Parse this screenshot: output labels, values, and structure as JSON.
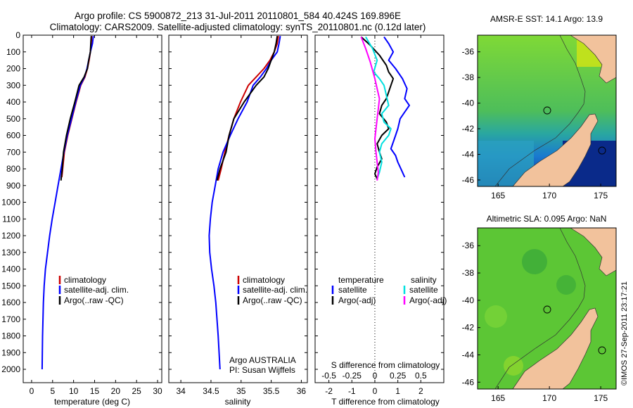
{
  "header": {
    "line1": "Argo profile: CS 5900872_213 31-Jul-2011 20110801_584 40.424S 169.896E",
    "line2": "Climatology: CARS2009. Satellite-adjusted climatology: synTS_20110801.nc (0.12d later)"
  },
  "colors": {
    "climatology": "#cc0000",
    "satellite": "#0000ff",
    "argo": "#000000",
    "argo_salinity": "#ff00ff",
    "satellite_salinity": "#00e0e0",
    "land": "#f2c29c"
  },
  "profile_axes": {
    "pressure_ylim": [
      0,
      2080
    ],
    "pressure_ticks": [
      "0",
      "100",
      "200",
      "300",
      "400",
      "500",
      "600",
      "700",
      "800",
      "900",
      "1000",
      "1100",
      "1200",
      "1300",
      "1400",
      "1500",
      "1600",
      "1700",
      "1800",
      "1900",
      "2000"
    ]
  },
  "chart_data": [
    {
      "type": "line",
      "id": "temperature",
      "xlabel": "temperature (deg C)",
      "xlim": [
        -2,
        31
      ],
      "xticks": [
        "0",
        "5",
        "10",
        "15",
        "20",
        "25",
        "30"
      ],
      "legend": [
        "climatology",
        "satellite-adj. clim.",
        "Argo(..raw -QC)"
      ],
      "series": [
        {
          "name": "climatology",
          "x": [
            14.3,
            14.2,
            14.0,
            13.7,
            13.3,
            12.7,
            11.7,
            10.6,
            9.6,
            8.6,
            7.8,
            7.2
          ],
          "y": [
            5,
            50,
            100,
            150,
            200,
            250,
            300,
            400,
            500,
            600,
            700,
            850
          ]
        },
        {
          "name": "satellite-adj. clim.",
          "x": [
            14.7,
            14.5,
            14.0,
            13.6,
            13.2,
            12.6,
            11.6,
            10.5,
            9.5,
            8.5,
            7.7,
            7.0,
            6.3,
            5.6,
            4.9,
            4.3,
            3.8,
            3.3,
            3.0,
            2.8,
            2.6,
            2.5
          ],
          "y": [
            5,
            50,
            100,
            150,
            200,
            250,
            300,
            400,
            500,
            600,
            700,
            800,
            900,
            1000,
            1100,
            1200,
            1300,
            1400,
            1500,
            1600,
            1800,
            2000
          ]
        },
        {
          "name": "Argo(..raw -QC)",
          "x": [
            14.2,
            14.1,
            14.0,
            13.6,
            13.3,
            12.5,
            11.3,
            10.3,
            9.2,
            8.3,
            7.6,
            7.3,
            7.0
          ],
          "y": [
            5,
            50,
            100,
            150,
            200,
            250,
            300,
            400,
            500,
            600,
            700,
            800,
            870
          ]
        }
      ]
    },
    {
      "type": "line",
      "id": "salinity",
      "xlabel": "salinity",
      "xlim": [
        33.8,
        36.1
      ],
      "xticks": [
        "34",
        "34.5",
        "35",
        "35.5",
        "36"
      ],
      "legend": [
        "climatology",
        "satellite-adj. clim.",
        "Argo(..raw -QC)"
      ],
      "annotation": [
        "Argo AUSTRALIA",
        "PI: Susan Wijffels"
      ],
      "series": [
        {
          "name": "climatology",
          "x": [
            35.62,
            35.6,
            35.55,
            35.48,
            35.38,
            35.25,
            35.12,
            34.99,
            34.88,
            34.8,
            34.73,
            34.67,
            34.62
          ],
          "y": [
            5,
            50,
            100,
            150,
            200,
            250,
            300,
            400,
            500,
            600,
            700,
            800,
            870
          ]
        },
        {
          "name": "satellite-adj. clim.",
          "x": [
            35.65,
            35.63,
            35.6,
            35.5,
            35.42,
            35.32,
            35.2,
            35.1,
            34.95,
            34.82,
            34.7,
            34.62,
            34.57,
            34.52,
            34.49,
            34.47,
            34.48,
            34.51,
            34.55,
            34.58,
            34.62,
            34.65
          ],
          "y": [
            5,
            50,
            100,
            150,
            200,
            250,
            300,
            400,
            500,
            600,
            700,
            800,
            900,
            1000,
            1100,
            1200,
            1300,
            1400,
            1500,
            1600,
            1800,
            2000
          ]
        },
        {
          "name": "Argo(..raw -QC)",
          "x": [
            35.6,
            35.58,
            35.55,
            35.5,
            35.45,
            35.38,
            35.25,
            35.05,
            34.88,
            34.8,
            34.75,
            34.65,
            34.6
          ],
          "y": [
            5,
            50,
            100,
            150,
            200,
            250,
            300,
            400,
            500,
            600,
            700,
            800,
            870
          ]
        }
      ]
    },
    {
      "type": "line",
      "id": "difference",
      "xlabel": "T difference from climatology",
      "xlabel_top": "S difference from climatology",
      "xlim": [
        -2.6,
        3.0
      ],
      "xticks": [
        "-2",
        "-1",
        "0",
        "1",
        "2"
      ],
      "xticks_salinity": [
        "-0.5",
        "-0.25",
        "0",
        "0.25",
        "0.5"
      ],
      "legend_headers": [
        "temperature",
        "salinity"
      ],
      "legend": [
        "satellite",
        "Argo(-adj)",
        "satellite",
        "Argo(-adj)"
      ],
      "series": [
        {
          "name": "satellite",
          "x": [
            0.4,
            0.6,
            0.8,
            0.6,
            0.9,
            1.2,
            1.4,
            1.3,
            1.5,
            1.3,
            1.1,
            1.0,
            0.9,
            0.8,
            0.7,
            0.9,
            1.0,
            1.1,
            1.2,
            1.3
          ],
          "y": [
            10,
            50,
            100,
            150,
            200,
            260,
            320,
            380,
            420,
            460,
            500,
            560,
            600,
            640,
            680,
            720,
            760,
            790,
            820,
            850
          ]
        },
        {
          "name": "Argo(-adj)",
          "x": [
            -0.6,
            -0.2,
            0.2,
            0.5,
            0.6,
            0.8,
            0.7,
            0.5,
            0.3,
            0.2,
            0.5,
            0.6,
            0.3,
            0.1,
            0.2,
            0.3,
            0.1,
            0.0,
            0.1
          ],
          "y": [
            10,
            60,
            120,
            180,
            220,
            260,
            300,
            380,
            420,
            470,
            520,
            560,
            600,
            650,
            700,
            740,
            790,
            830,
            860
          ]
        },
        {
          "name": "satellite",
          "x": [
            -0.4,
            -0.1,
            0.1,
            -0.05,
            0.2,
            0.4,
            0.5,
            0.6,
            0.3,
            0.4,
            0.7,
            0.6,
            0.3,
            0.2,
            0.3,
            0.2,
            0.1
          ],
          "y": [
            10,
            80,
            150,
            220,
            260,
            300,
            360,
            420,
            470,
            520,
            560,
            600,
            650,
            700,
            760,
            820,
            860
          ]
        },
        {
          "name": "Argo(-adj)",
          "x": [
            -0.6,
            -0.4,
            -0.2,
            0.0,
            0.1,
            0.2,
            0.15,
            0.1,
            0.05,
            0.0,
            0.05,
            0.1,
            0.15,
            0.1
          ],
          "y": [
            10,
            80,
            160,
            260,
            320,
            380,
            440,
            500,
            560,
            620,
            700,
            760,
            820,
            870
          ]
        }
      ]
    }
  ],
  "maps": [
    {
      "title": "AMSR-E SST: 14.1 Argo: 13.9",
      "xticks": [
        "165",
        "170",
        "175"
      ],
      "yticks": [
        "-36",
        "-38",
        "-40",
        "-42",
        "-44",
        "-46"
      ]
    },
    {
      "title": "Altimetric SLA: 0.095 Argo: NaN",
      "xticks": [
        "165",
        "170",
        "175"
      ],
      "yticks": [
        "-36",
        "-38",
        "-40",
        "-42",
        "-44",
        "-46"
      ]
    }
  ],
  "credit": "©IMOS 27-Sep-2011 23:17:21"
}
